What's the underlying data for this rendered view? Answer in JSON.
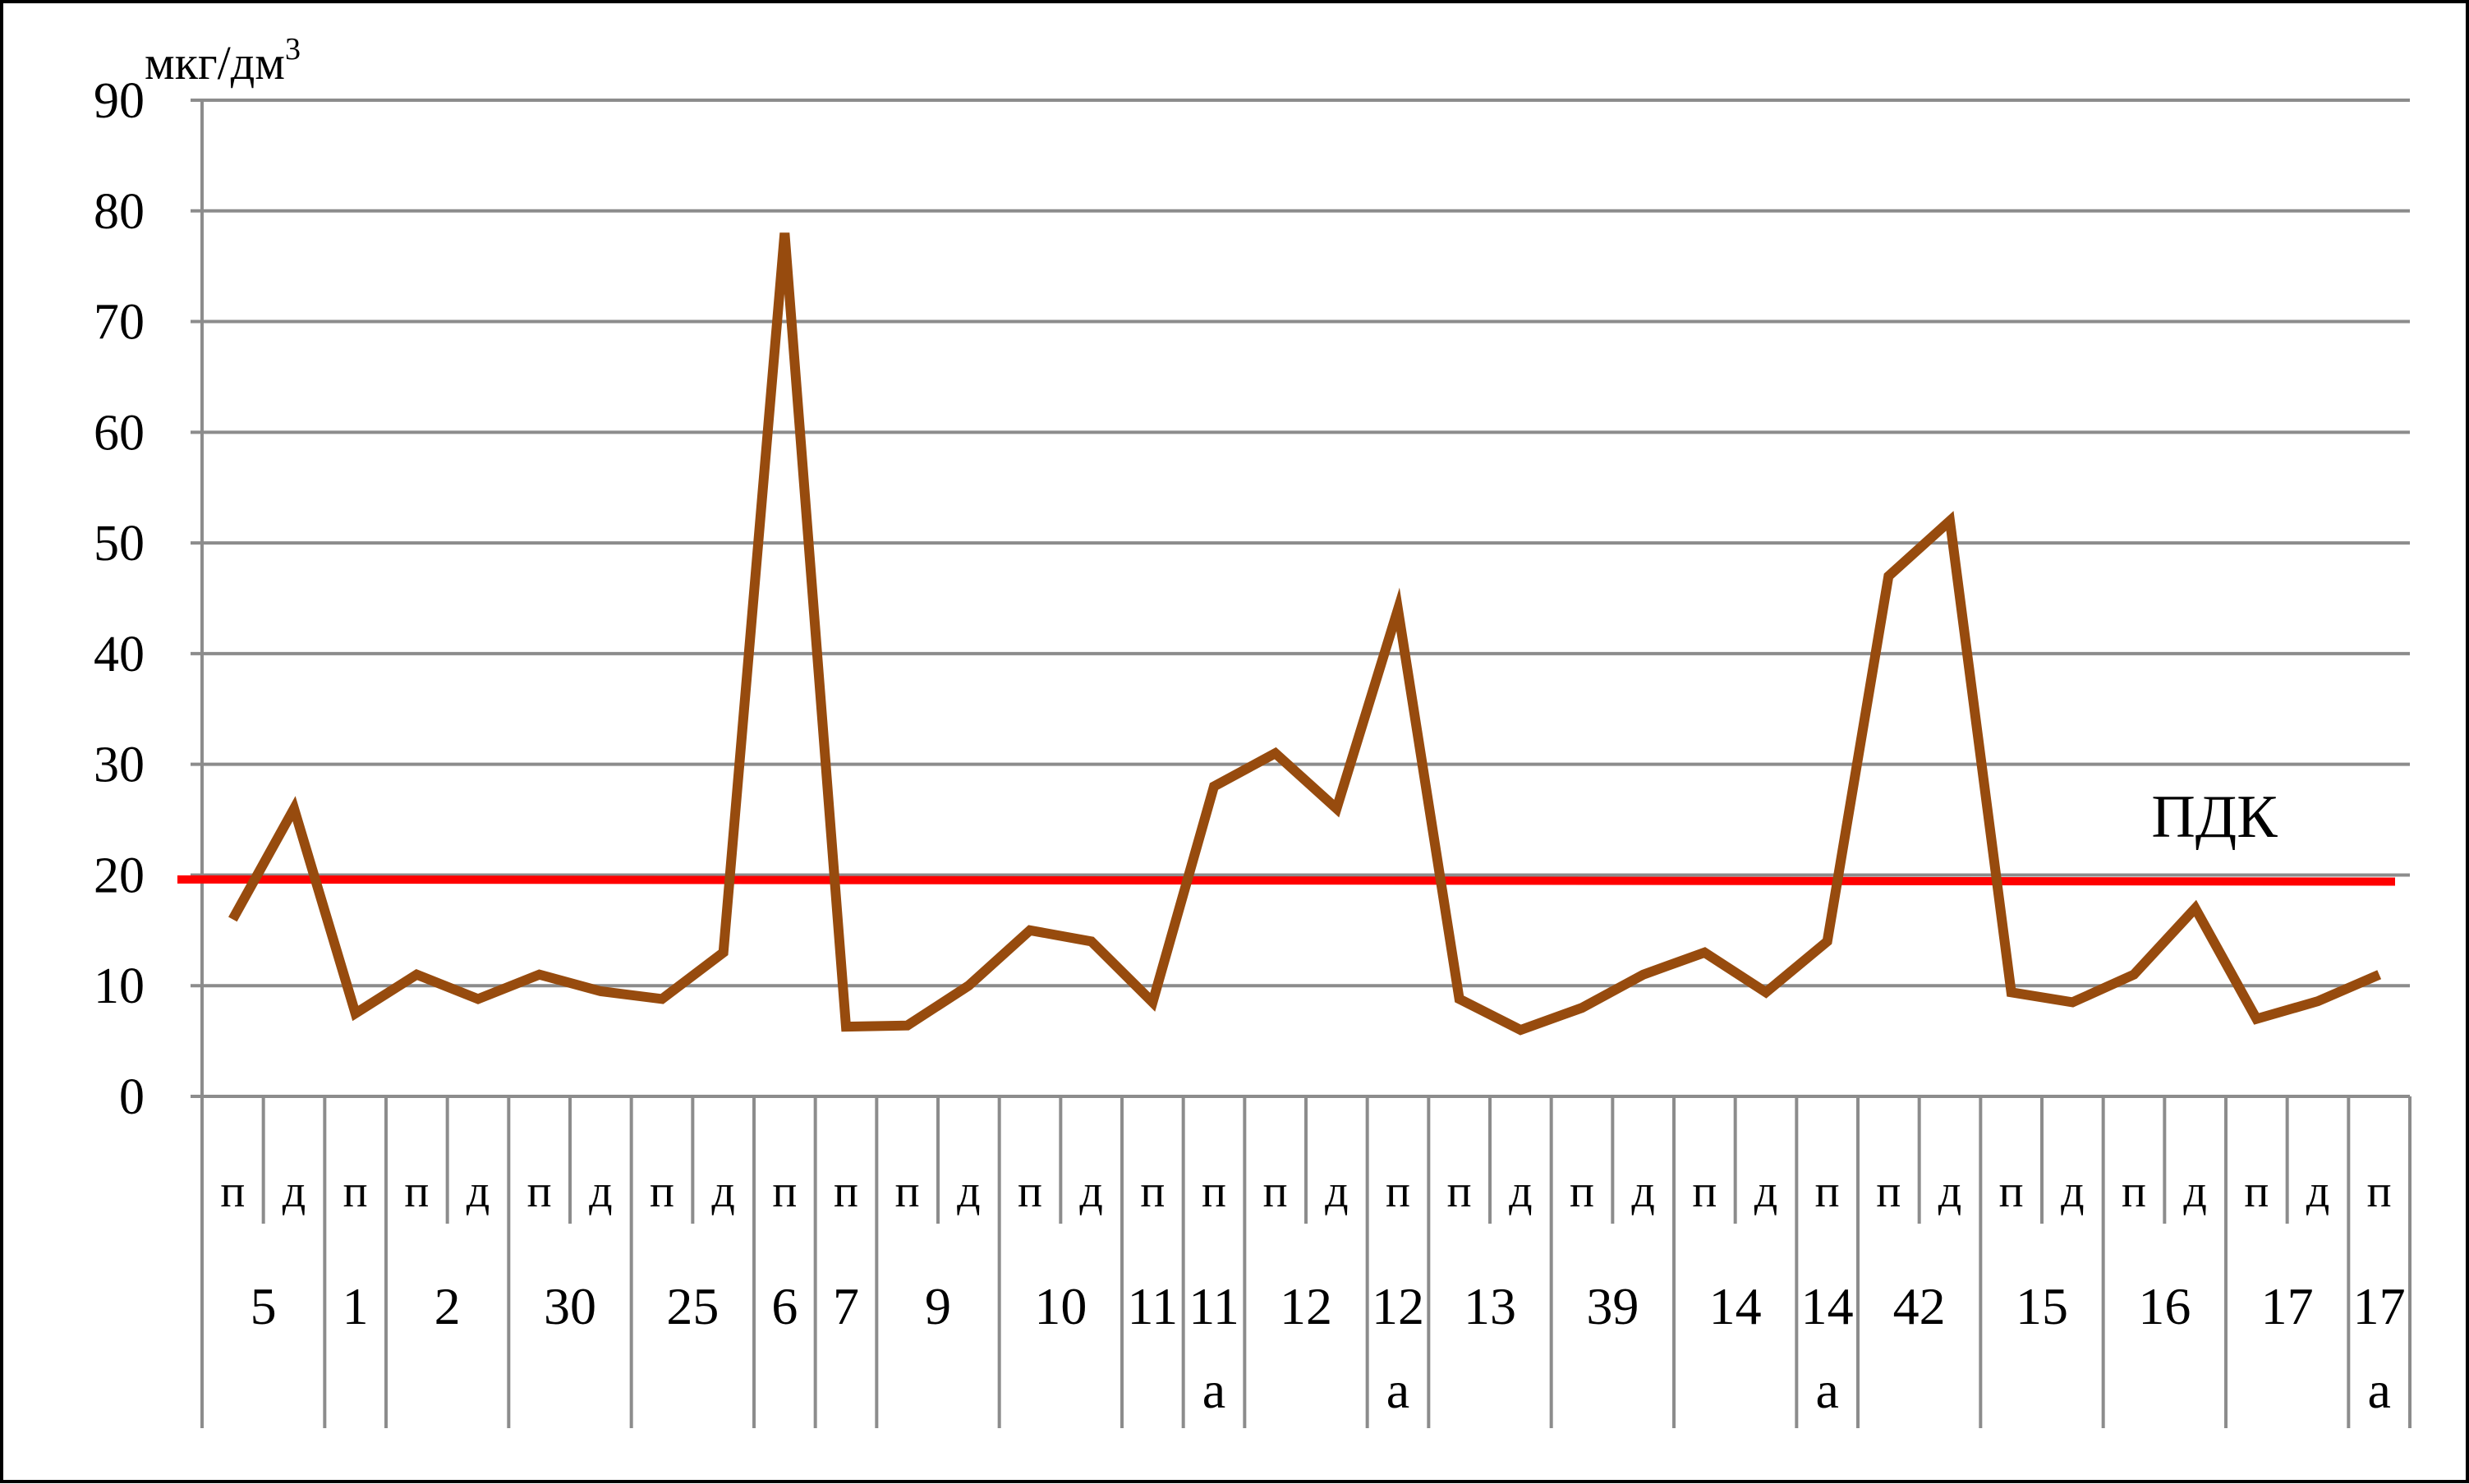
{
  "chart_data": {
    "type": "line",
    "ylabel": "мкг/дм",
    "ylabel_superscript": "3",
    "ylim": [
      0,
      90
    ],
    "yticks": [
      0,
      10,
      20,
      30,
      40,
      50,
      60,
      70,
      80,
      90
    ],
    "grid": true,
    "x_sublabels": [
      "п",
      "д",
      "п",
      "п",
      "д",
      "п",
      "д",
      "п",
      "д",
      "п",
      "п",
      "п",
      "д",
      "п",
      "д",
      "п",
      "п",
      "п",
      "д",
      "п",
      "п",
      "д",
      "п",
      "д",
      "п",
      "д",
      "п",
      "п",
      "д",
      "п",
      "д",
      "п",
      "д",
      "п",
      "д",
      "п"
    ],
    "x_groups": [
      {
        "label": "5",
        "span": 2
      },
      {
        "label": "1",
        "span": 1
      },
      {
        "label": "2",
        "span": 2
      },
      {
        "label": "30",
        "span": 2
      },
      {
        "label": "25",
        "span": 2
      },
      {
        "label": "6",
        "span": 1
      },
      {
        "label": "7",
        "span": 1
      },
      {
        "label": "9",
        "span": 2
      },
      {
        "label": "10",
        "span": 2
      },
      {
        "label": "11",
        "span": 1
      },
      {
        "label": "11",
        "suffix": "а",
        "span": 1
      },
      {
        "label": "12",
        "span": 2
      },
      {
        "label": "12",
        "suffix": "а",
        "span": 1
      },
      {
        "label": "13",
        "span": 2
      },
      {
        "label": "39",
        "span": 2
      },
      {
        "label": "14",
        "span": 2
      },
      {
        "label": "14",
        "suffix": "а",
        "span": 1
      },
      {
        "label": "42",
        "span": 2
      },
      {
        "label": "15",
        "span": 2
      },
      {
        "label": "16",
        "span": 2
      },
      {
        "label": "17",
        "span": 2
      },
      {
        "label": "17",
        "suffix": "а",
        "span": 1
      }
    ],
    "series": [
      {
        "color": "#974b0e",
        "values": [
          16,
          26,
          7.5,
          11,
          8.8,
          11,
          9.5,
          8.8,
          13,
          78,
          6.3,
          6.4,
          10,
          15,
          14,
          8.5,
          28,
          31,
          26,
          44,
          8.8,
          6,
          8,
          11,
          13,
          9.4,
          14,
          47,
          52,
          9.4,
          8.5,
          11,
          17,
          7,
          8.6,
          11
        ]
      }
    ],
    "reference_line": {
      "label": "ПДК",
      "value": 19.6,
      "value_end": 19.4,
      "color": "#ff0000"
    }
  }
}
